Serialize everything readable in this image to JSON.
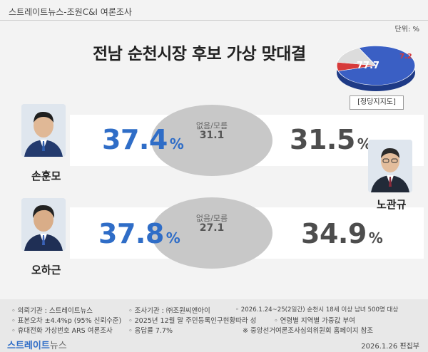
{
  "header": {
    "source": "스트레이트뉴스-조원C&I 여론조사",
    "unit": "단위: %"
  },
  "title": "전남 순천시장 후보 가상 맞대결",
  "pie": {
    "label": "[정당지지도]",
    "values": [
      77.7,
      7.2
    ],
    "value_labels": [
      "77.7",
      "7.2"
    ],
    "colors": [
      "#3a5fc4",
      "#d63a3a",
      "#dcdcdc"
    ]
  },
  "chart_data": {
    "type": "table",
    "title": "전남 순천시장 후보 가상 맞대결",
    "unit": "%",
    "matchups": [
      {
        "left": {
          "name": "손훈모",
          "value": 37.4,
          "label": "37.4"
        },
        "undecided": {
          "label": "없음/모름",
          "value": 31.1,
          "text": "31.1"
        },
        "right": {
          "name": "노관규",
          "value": 31.5,
          "label": "31.5"
        }
      },
      {
        "left": {
          "name": "오하근",
          "value": 37.8,
          "label": "37.8"
        },
        "undecided": {
          "label": "없음/모름",
          "value": 27.1,
          "text": "27.1"
        },
        "right": {
          "name": "노관규",
          "value": 34.9,
          "label": "34.9"
        }
      }
    ]
  },
  "percent_sign": "%",
  "footer": {
    "col1": [
      "◦ 의뢰기관 : 스트레이트뉴스",
      "◦ 표본오차 ±4.4%p (95% 신뢰수준)",
      "◦ 휴대전화 가상번호 ARS 여론조사"
    ],
    "col2": [
      "◦ 조사기관 : ㈜조원씨앤아이",
      "◦ 2025년 12월 말 주민등록인구현황따라 성",
      "◦ 응답률 7.7%"
    ],
    "col3": [
      "◦ 2026.1.24~25(2일간) 순천시 18세 이상 남녀 500명 대상",
      "◦ 연령별 지역별 가중값 부여",
      "※ 중앙선거여론조사심의위원회 홈페이지 참조"
    ],
    "logo_prefix": "스트레이트",
    "logo_suffix": "뉴스",
    "date": "2026.1.26",
    "dept": "편집부"
  }
}
